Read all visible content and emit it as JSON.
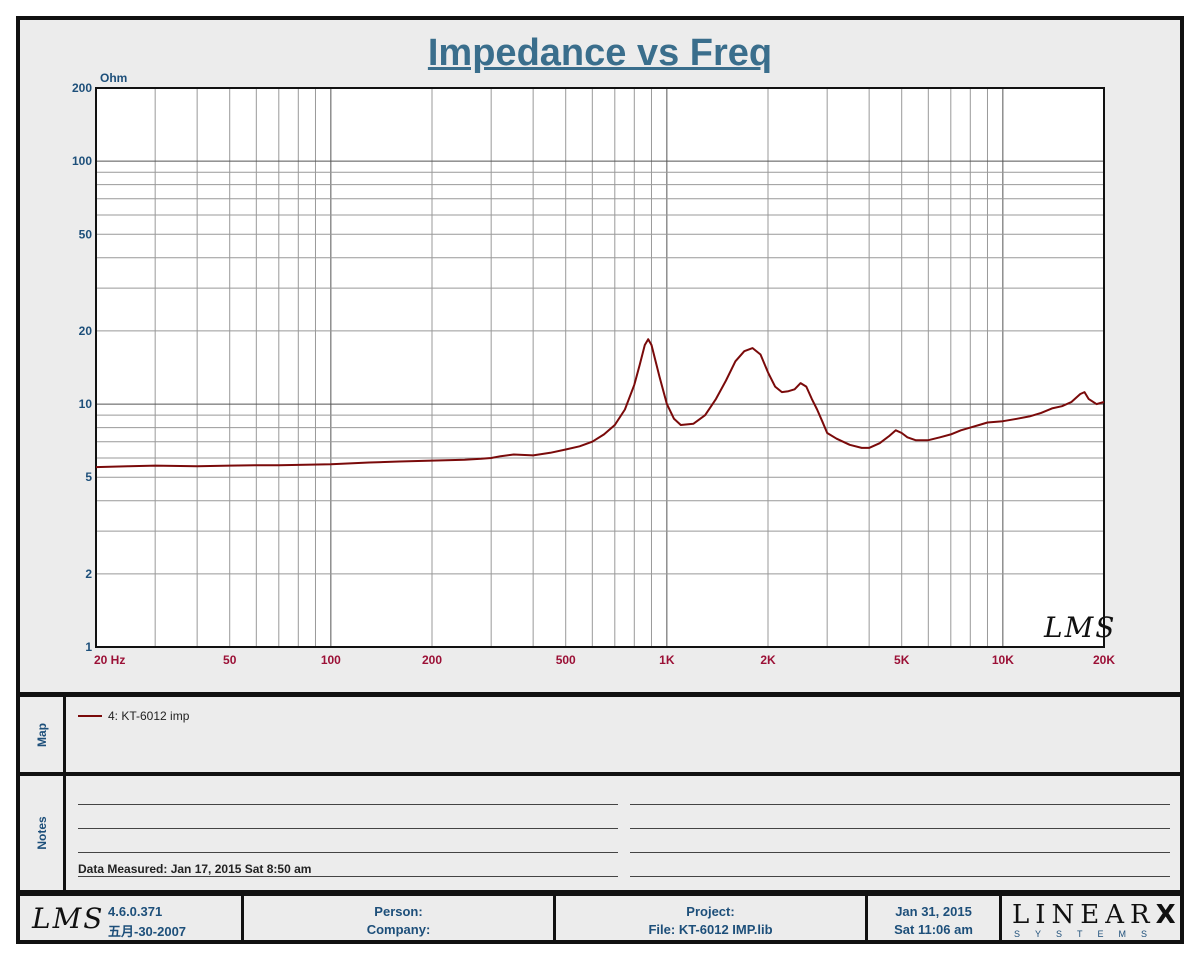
{
  "chart_data": {
    "type": "line",
    "title": "Impedance vs Freq",
    "xlabel": "",
    "ylabel": "Ohm",
    "x_scale": "log",
    "y_scale": "log",
    "xlim": [
      20,
      20000
    ],
    "ylim": [
      1,
      200
    ],
    "grid": true,
    "x_tick_values": [
      20,
      50,
      100,
      200,
      500,
      1000,
      2000,
      5000,
      10000,
      20000
    ],
    "x_tick_labels": [
      "20  Hz",
      "50",
      "100",
      "200",
      "500",
      "1K",
      "2K",
      "5K",
      "10K",
      "20K"
    ],
    "y_tick_values": [
      1,
      2,
      5,
      10,
      20,
      50,
      100,
      200
    ],
    "y_tick_labels": [
      "1",
      "2",
      "5",
      "10",
      "20",
      "50",
      "100",
      "200"
    ],
    "watermark": "LMS",
    "series": [
      {
        "name": "4: KT-6012 imp",
        "color": "#7a0a0a",
        "x": [
          20,
          25,
          30,
          40,
          50,
          60,
          70,
          80,
          100,
          130,
          160,
          200,
          250,
          280,
          300,
          320,
          350,
          400,
          450,
          500,
          550,
          600,
          650,
          700,
          750,
          800,
          830,
          860,
          880,
          900,
          950,
          1000,
          1050,
          1100,
          1200,
          1300,
          1400,
          1500,
          1600,
          1700,
          1800,
          1900,
          2000,
          2100,
          2200,
          2300,
          2400,
          2500,
          2600,
          2700,
          2800,
          2900,
          3000,
          3200,
          3500,
          3800,
          4000,
          4300,
          4600,
          4800,
          5000,
          5200,
          5500,
          6000,
          6500,
          7000,
          7500,
          8000,
          8500,
          9000,
          10000,
          11000,
          12000,
          13000,
          14000,
          15000,
          16000,
          17000,
          17500,
          18000,
          19000,
          20000
        ],
        "values": [
          5.5,
          5.55,
          5.58,
          5.55,
          5.58,
          5.6,
          5.6,
          5.62,
          5.65,
          5.75,
          5.8,
          5.85,
          5.9,
          5.95,
          6.0,
          6.1,
          6.2,
          6.15,
          6.3,
          6.5,
          6.7,
          7.0,
          7.5,
          8.2,
          9.5,
          12.0,
          14.5,
          17.5,
          18.5,
          17.5,
          13.0,
          10.0,
          8.7,
          8.2,
          8.3,
          9.0,
          10.5,
          12.5,
          15.0,
          16.5,
          17.0,
          16.0,
          13.5,
          11.8,
          11.2,
          11.3,
          11.5,
          12.2,
          11.8,
          10.5,
          9.5,
          8.5,
          7.6,
          7.2,
          6.8,
          6.6,
          6.6,
          6.9,
          7.4,
          7.8,
          7.6,
          7.3,
          7.1,
          7.1,
          7.3,
          7.5,
          7.8,
          8.0,
          8.2,
          8.4,
          8.5,
          8.7,
          8.9,
          9.2,
          9.6,
          9.8,
          10.2,
          11.0,
          11.2,
          10.5,
          10.0,
          10.2
        ]
      }
    ]
  },
  "map": {
    "label": "Map",
    "legend_text": "4: KT-6012 imp"
  },
  "notes": {
    "label": "Notes",
    "measured": "Data Measured: Jan 17, 2015  Sat  8:50 am"
  },
  "footer": {
    "version": "4.6.0.371",
    "version_date": "五月-30-2007",
    "person": "Person:",
    "company": "Company:",
    "project": "Project:",
    "file": "File: KT-6012 IMP.lib",
    "date": "Jan 31, 2015",
    "time": "Sat 11:06 am",
    "brand": "LINEAR",
    "brand_x": "X",
    "brand_sub": "SYSTEMS",
    "lms_logo": "LMS"
  }
}
